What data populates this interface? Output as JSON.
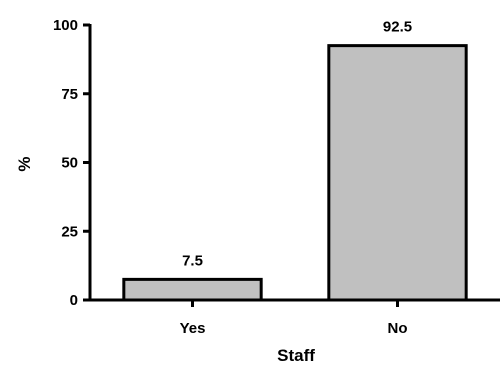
{
  "chart_data": {
    "type": "bar",
    "title": "",
    "xlabel": "Staff",
    "ylabel": "%",
    "ylim": [
      0,
      100
    ],
    "yticks": [
      0,
      25,
      50,
      75,
      100
    ],
    "categories": [
      "Yes",
      "No"
    ],
    "values": [
      7.5,
      92.5
    ],
    "data_labels": [
      "7.5",
      "92.5"
    ],
    "bar_color": "#c0c0c0",
    "bar_outline_color": "#000000",
    "grid": false,
    "legend": "none"
  }
}
